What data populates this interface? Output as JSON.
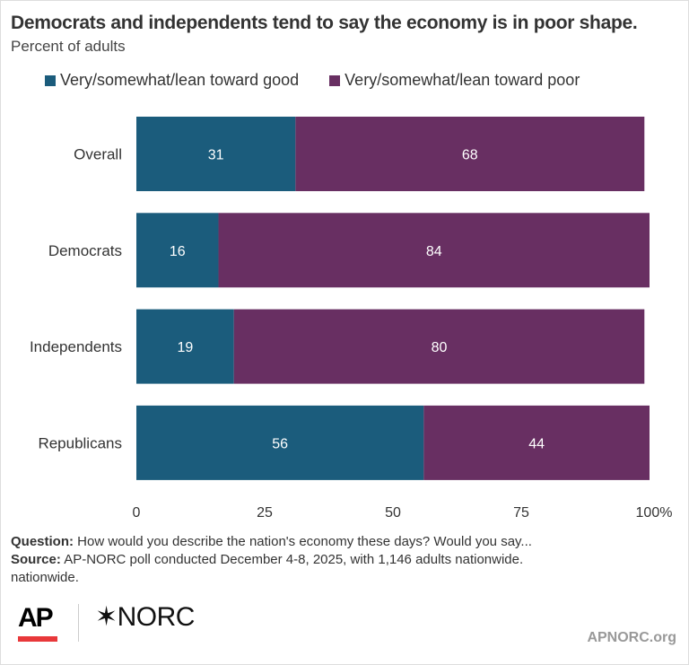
{
  "chart_data": {
    "type": "bar",
    "orientation": "horizontal",
    "stacked": true,
    "title": "Democrats and independents tend to say the economy is in poor shape.",
    "subtitle": "Percent of adults",
    "categories": [
      "Overall",
      "Democrats",
      "Independents",
      "Republicans"
    ],
    "series": [
      {
        "name": "Very/somewhat/lean toward good",
        "color": "#1b5c7c",
        "values": [
          31,
          16,
          19,
          56
        ]
      },
      {
        "name": "Very/somewhat/lean toward poor",
        "color": "#682f62",
        "values": [
          68,
          84,
          80,
          44
        ]
      }
    ],
    "xlim": [
      0,
      100
    ],
    "x_ticks": [
      "0",
      "25",
      "50",
      "75",
      "100%"
    ],
    "legend_position": "top",
    "grid": false
  },
  "footer": {
    "question_label": "Question:",
    "question_text": " How would you describe the nation's economy these days? Would you say...",
    "source_label": "Source:",
    "source_text": " AP-NORC poll conducted December 4-8, 2025, with 1,146 adults nationwide.",
    "source_extra": "nationwide."
  },
  "logos": {
    "ap": "AP",
    "norc": "NORC",
    "site": "APNORC.org"
  }
}
